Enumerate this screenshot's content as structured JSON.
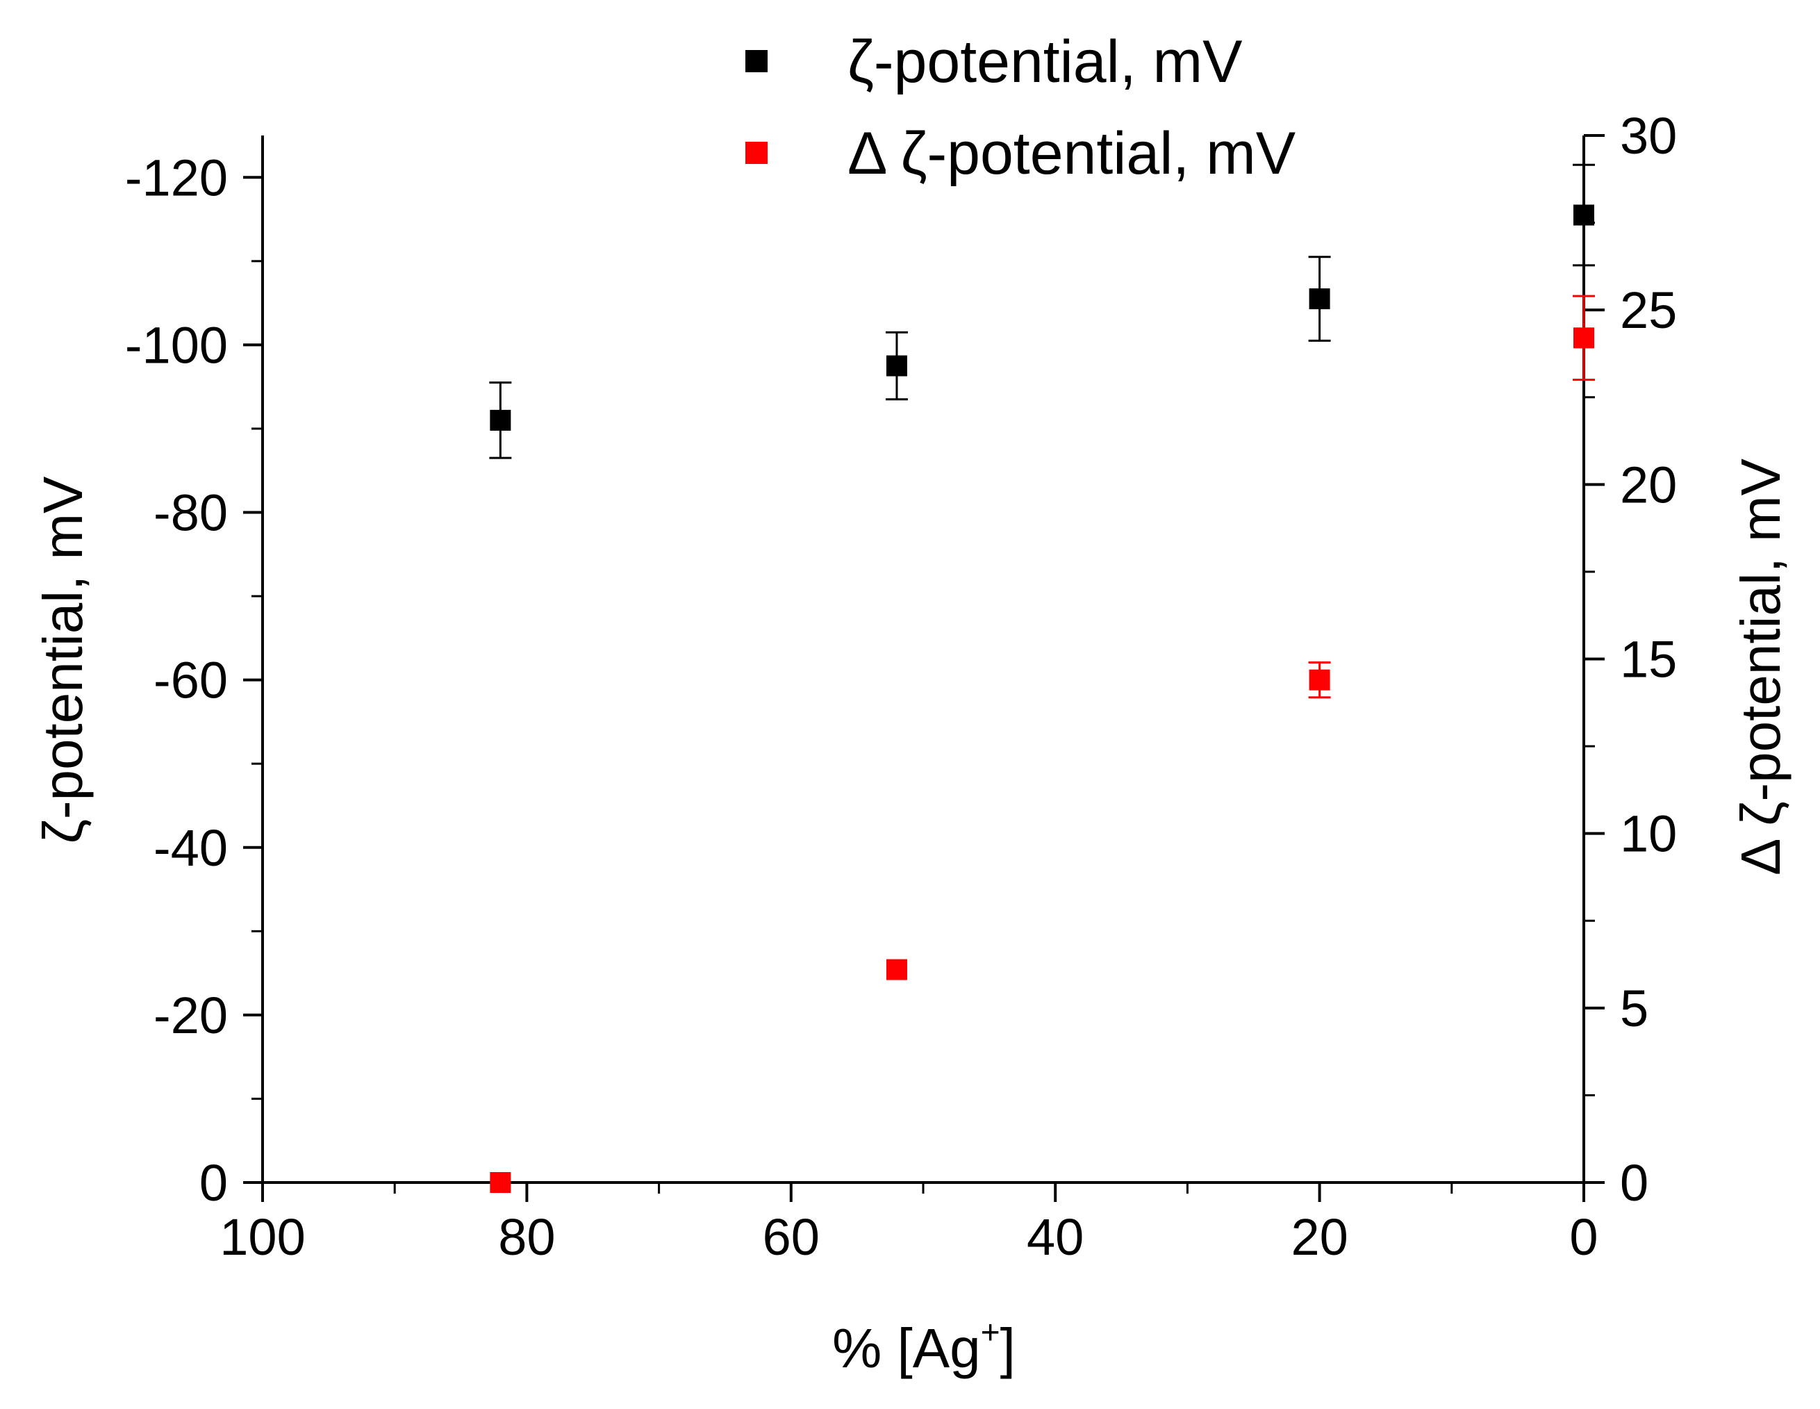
{
  "chart_data": {
    "type": "scatter",
    "title": "",
    "xlabel": "% [Ag",
    "xlabel_superscript": "+",
    "xlabel_suffix": "]",
    "ylabel_left": "ζ-potential, mV",
    "ylabel_right": "Δ ζ-potential, mV",
    "x_range": [
      100,
      0
    ],
    "y_left_range": [
      0,
      -125
    ],
    "y_right_range": [
      0,
      30
    ],
    "x_ticks": [
      100,
      80,
      60,
      40,
      20,
      0
    ],
    "x_tick_labels": [
      "100",
      "80",
      "60",
      "40",
      "20",
      "0"
    ],
    "y_left_ticks": [
      0,
      -20,
      -40,
      -60,
      -80,
      -100,
      -120
    ],
    "y_left_tick_labels": [
      "0",
      "-20",
      "-40",
      "-60",
      "-80",
      "-100",
      "-120"
    ],
    "y_right_ticks": [
      0,
      5,
      10,
      15,
      20,
      25,
      30
    ],
    "y_right_tick_labels": [
      "0",
      "5",
      "10",
      "15",
      "20",
      "25",
      "30"
    ],
    "grid": false,
    "legend_position": "top-center",
    "series": [
      {
        "name": "ζ-potential, mV",
        "axis": "left",
        "color": "#000000",
        "marker": "square",
        "x": [
          82,
          52,
          20,
          0
        ],
        "y": [
          -91,
          -97.5,
          -105.5,
          -115.5
        ],
        "err": [
          4.5,
          4,
          5,
          6
        ]
      },
      {
        "name": "Δ ζ-potential, mV",
        "axis": "right",
        "color": "#ff0000",
        "marker": "square",
        "x": [
          82,
          52,
          20,
          0
        ],
        "y": [
          0,
          6.1,
          14.4,
          24.2
        ],
        "err": [
          0,
          0,
          0.5,
          1.2
        ]
      }
    ]
  }
}
